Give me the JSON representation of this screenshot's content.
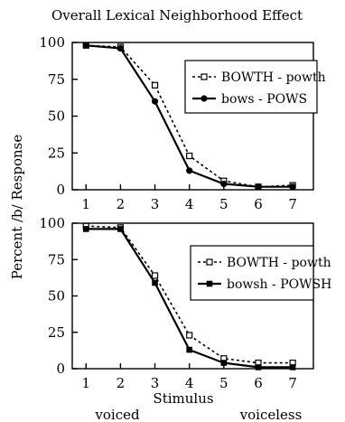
{
  "chart_data": [
    {
      "type": "line",
      "title": "Overall Lexical Neighborhood Effect",
      "ylabel": "Percent /b/ Response",
      "xlabel": "",
      "x": [
        1,
        2,
        3,
        4,
        5,
        6,
        7
      ],
      "xlim": [
        0.6,
        7.6
      ],
      "ylim": [
        0,
        100
      ],
      "yticks": [
        0,
        25,
        50,
        75,
        100
      ],
      "legend_position": "top-right",
      "series": [
        {
          "name": "BOWTH - powth",
          "marker": "open-square",
          "line": "dashed",
          "values": [
            98,
            97,
            71,
            23,
            6,
            2,
            3
          ]
        },
        {
          "name": "bows - POWS",
          "marker": "filled-circle",
          "line": "solid",
          "values": [
            98,
            96,
            60,
            13,
            4,
            2,
            2
          ]
        }
      ]
    },
    {
      "type": "line",
      "title": "",
      "ylabel": "Percent /b/ Response",
      "xlabel": "Stimulus",
      "x": [
        1,
        2,
        3,
        4,
        5,
        6,
        7
      ],
      "xlim": [
        0.6,
        7.6
      ],
      "ylim": [
        0,
        100
      ],
      "yticks": [
        0,
        25,
        50,
        75,
        100
      ],
      "legend_position": "right",
      "xlabel_notes": {
        "left": "voiced",
        "right": "voiceless"
      },
      "series": [
        {
          "name": "BOWTH - powth",
          "marker": "open-square",
          "line": "dashed",
          "values": [
            98,
            97,
            64,
            23,
            7,
            4,
            4
          ]
        },
        {
          "name": "bowsh - POWSH",
          "marker": "filled-square",
          "line": "solid",
          "values": [
            96,
            96,
            59,
            13,
            4,
            1,
            1
          ]
        }
      ]
    }
  ]
}
